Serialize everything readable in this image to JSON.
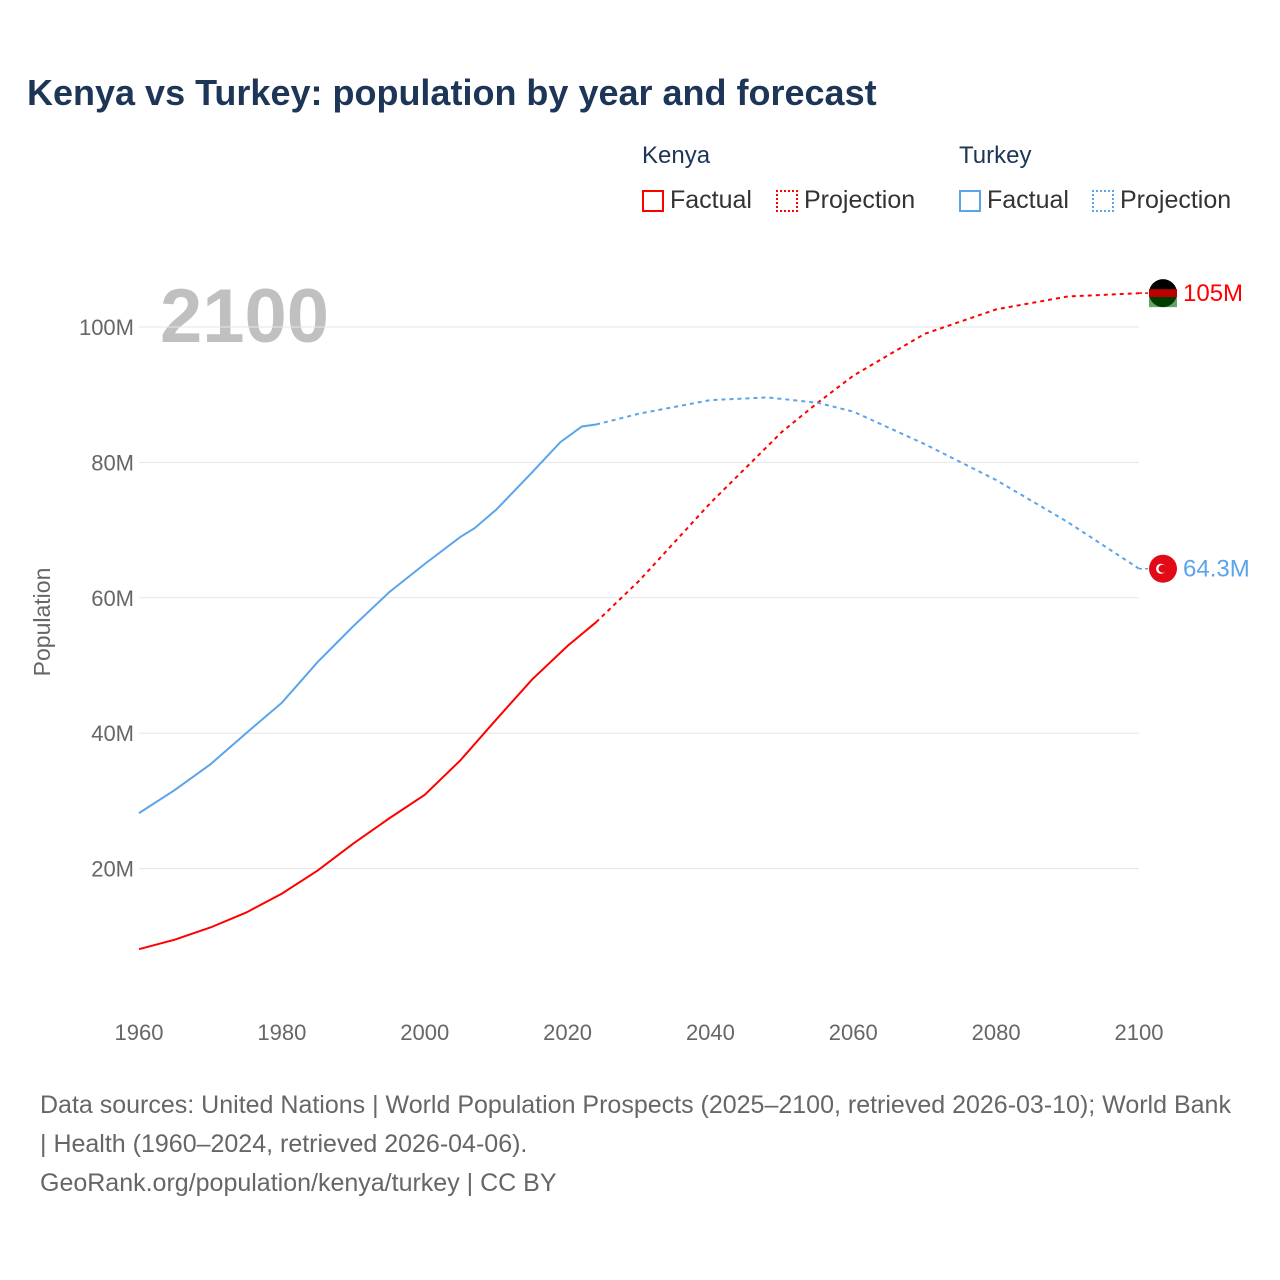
{
  "title": "Kenya vs Turkey: population by year and forecast",
  "legend": {
    "groups": [
      {
        "name": "Kenya",
        "factual": "Factual",
        "projection": "Projection",
        "color": "#ff0000"
      },
      {
        "name": "Turkey",
        "factual": "Factual",
        "projection": "Projection",
        "color": "#5ba4ea"
      }
    ]
  },
  "footer": {
    "line1": "Data sources: United Nations | World Population Prospects (2025–2100, retrieved 2026-03-10); World Bank | Health (1960–2024, retrieved 2026-04-06).",
    "line2": "GeoRank.org/population/kenya/turkey | CC BY"
  },
  "chart_data": {
    "type": "line",
    "title": "Kenya vs Turkey: population by year and forecast",
    "year_label": "2100",
    "xlabel": "",
    "ylabel": "Population",
    "xlim": [
      1960,
      2100
    ],
    "ylim": [
      0,
      110
    ],
    "x_ticks": [
      "1960",
      "1980",
      "2000",
      "2020",
      "2040",
      "2060",
      "2080",
      "2100"
    ],
    "y_ticks": [
      {
        "v": 20,
        "label": "20M"
      },
      {
        "v": 40,
        "label": "40M"
      },
      {
        "v": 60,
        "label": "60M"
      },
      {
        "v": 80,
        "label": "80M"
      },
      {
        "v": 100,
        "label": "100M"
      }
    ],
    "series": [
      {
        "name": "Kenya",
        "color": "#ff0000",
        "end_label": "105M",
        "factual": [
          [
            1960,
            8.1
          ],
          [
            1965,
            9.5
          ],
          [
            1970,
            11.3
          ],
          [
            1975,
            13.5
          ],
          [
            1980,
            16.3
          ],
          [
            1985,
            19.7
          ],
          [
            1990,
            23.7
          ],
          [
            1995,
            27.4
          ],
          [
            2000,
            30.9
          ],
          [
            2005,
            36.0
          ],
          [
            2010,
            42.0
          ],
          [
            2015,
            47.9
          ],
          [
            2020,
            52.9
          ],
          [
            2024,
            56.4
          ]
        ],
        "projection": [
          [
            2024,
            56.4
          ],
          [
            2030,
            62.5
          ],
          [
            2040,
            74
          ],
          [
            2050,
            84.5
          ],
          [
            2055,
            88.8
          ],
          [
            2060,
            92.8
          ],
          [
            2070,
            99
          ],
          [
            2080,
            102.6
          ],
          [
            2090,
            104.5
          ],
          [
            2100,
            105
          ]
        ]
      },
      {
        "name": "Turkey",
        "color": "#5ba4ea",
        "end_label": "64.3M",
        "factual": [
          [
            1960,
            28.2
          ],
          [
            1965,
            31.6
          ],
          [
            1970,
            35.4
          ],
          [
            1975,
            40.0
          ],
          [
            1980,
            44.5
          ],
          [
            1985,
            50.5
          ],
          [
            1990,
            55.8
          ],
          [
            1995,
            60.8
          ],
          [
            2000,
            65.0
          ],
          [
            2005,
            69.0
          ],
          [
            2007,
            70.3
          ],
          [
            2010,
            73.0
          ],
          [
            2015,
            78.5
          ],
          [
            2019,
            83.0
          ],
          [
            2022,
            85.3
          ],
          [
            2024,
            85.6
          ]
        ],
        "projection": [
          [
            2024,
            85.6
          ],
          [
            2030,
            87.2
          ],
          [
            2040,
            89.2
          ],
          [
            2048,
            89.6
          ],
          [
            2055,
            88.8
          ],
          [
            2060,
            87.5
          ],
          [
            2070,
            82.7
          ],
          [
            2080,
            77.4
          ],
          [
            2090,
            71.2
          ],
          [
            2100,
            64.3
          ]
        ]
      }
    ]
  }
}
